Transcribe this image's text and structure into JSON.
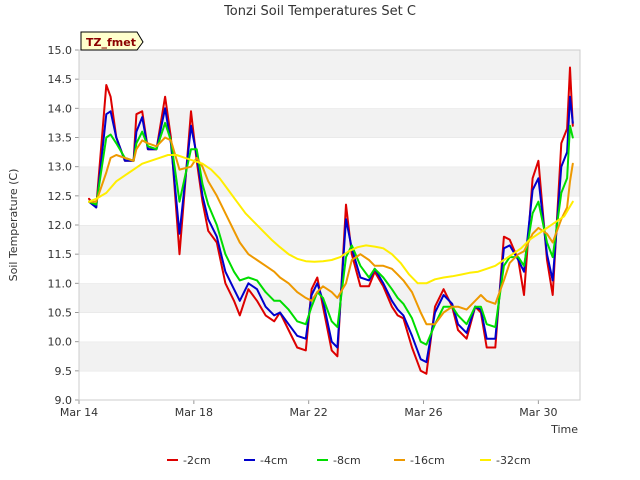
{
  "chart_data": {
    "type": "line",
    "title": "Tonzi Soil Temperatures Set C",
    "xlabel": "Time",
    "ylabel": "Soil Temperature (C)",
    "tag": "TZ_fmet",
    "xlim": [
      14,
      31.45
    ],
    "ylim": [
      9.0,
      15.0
    ],
    "x_ticks": [
      14,
      18,
      22,
      26,
      30
    ],
    "x_tick_labels": [
      "Mar 14",
      "Mar 18",
      "Mar 22",
      "Mar 26",
      "Mar 30"
    ],
    "y_ticks": [
      9.0,
      9.5,
      10.0,
      10.5,
      11.0,
      11.5,
      12.0,
      12.5,
      13.0,
      13.5,
      14.0,
      14.5,
      15.0
    ],
    "y_tick_labels": [
      "9.0",
      "9.5",
      "10.0",
      "10.5",
      "11.0",
      "11.5",
      "12.0",
      "12.5",
      "13.0",
      "13.5",
      "14.0",
      "14.5",
      "15.0"
    ],
    "grid": "horizontal bands",
    "legend_position": "bottom",
    "series": [
      {
        "name": "-2cm",
        "color": "#dd0000",
        "x": [
          14.35,
          14.6,
          14.95,
          15.1,
          15.3,
          15.6,
          15.9,
          16.0,
          16.2,
          16.4,
          16.7,
          17.0,
          17.2,
          17.5,
          17.9,
          18.1,
          18.3,
          18.5,
          18.8,
          19.1,
          19.4,
          19.6,
          19.9,
          20.2,
          20.5,
          20.8,
          21.0,
          21.3,
          21.6,
          21.9,
          22.1,
          22.3,
          22.5,
          22.8,
          23.0,
          23.3,
          23.5,
          23.8,
          24.1,
          24.3,
          24.6,
          24.9,
          25.1,
          25.3,
          25.6,
          25.9,
          26.1,
          26.4,
          26.7,
          27.0,
          27.2,
          27.5,
          27.8,
          28.0,
          28.2,
          28.5,
          28.8,
          29.0,
          29.3,
          29.5,
          29.8,
          30.0,
          30.3,
          30.5,
          30.8,
          31.0,
          31.1,
          31.2
        ],
        "y": [
          12.45,
          12.3,
          14.4,
          14.2,
          13.5,
          13.1,
          13.1,
          13.9,
          13.95,
          13.3,
          13.3,
          14.2,
          13.5,
          11.5,
          13.95,
          13.1,
          12.4,
          11.9,
          11.7,
          11.0,
          10.7,
          10.45,
          10.9,
          10.7,
          10.45,
          10.35,
          10.5,
          10.2,
          9.9,
          9.85,
          10.9,
          11.1,
          10.6,
          9.85,
          9.75,
          12.35,
          11.5,
          10.95,
          10.95,
          11.2,
          10.95,
          10.6,
          10.45,
          10.4,
          9.9,
          9.5,
          9.45,
          10.6,
          10.9,
          10.6,
          10.2,
          10.05,
          10.6,
          10.5,
          9.9,
          9.9,
          11.8,
          11.75,
          11.4,
          10.8,
          12.8,
          13.1,
          11.4,
          10.8,
          13.4,
          13.65,
          14.7,
          13.7
        ]
      },
      {
        "name": "-4cm",
        "color": "#0000cc",
        "x": [
          14.35,
          14.6,
          14.95,
          15.1,
          15.3,
          15.6,
          15.9,
          16.0,
          16.2,
          16.4,
          16.7,
          17.0,
          17.2,
          17.5,
          17.9,
          18.1,
          18.3,
          18.5,
          18.8,
          19.1,
          19.4,
          19.6,
          19.9,
          20.2,
          20.5,
          20.8,
          21.0,
          21.3,
          21.6,
          21.9,
          22.1,
          22.3,
          22.5,
          22.8,
          23.0,
          23.3,
          23.5,
          23.8,
          24.1,
          24.3,
          24.6,
          24.9,
          25.1,
          25.3,
          25.6,
          25.9,
          26.1,
          26.4,
          26.7,
          27.0,
          27.2,
          27.5,
          27.8,
          28.0,
          28.2,
          28.5,
          28.8,
          29.0,
          29.3,
          29.5,
          29.8,
          30.0,
          30.3,
          30.5,
          30.8,
          31.0,
          31.1,
          31.2
        ],
        "y": [
          12.4,
          12.3,
          13.9,
          13.95,
          13.5,
          13.1,
          13.1,
          13.6,
          13.85,
          13.3,
          13.3,
          14.0,
          13.4,
          11.85,
          13.7,
          13.2,
          12.5,
          12.1,
          11.8,
          11.2,
          10.9,
          10.7,
          11.0,
          10.9,
          10.6,
          10.45,
          10.5,
          10.3,
          10.1,
          10.05,
          10.8,
          11.0,
          10.7,
          10.0,
          9.9,
          12.1,
          11.6,
          11.1,
          11.05,
          11.25,
          11.0,
          10.7,
          10.55,
          10.45,
          10.1,
          9.7,
          9.65,
          10.5,
          10.8,
          10.65,
          10.3,
          10.15,
          10.6,
          10.55,
          10.05,
          10.05,
          11.6,
          11.65,
          11.4,
          11.2,
          12.6,
          12.8,
          11.5,
          11.05,
          13.0,
          13.25,
          14.2,
          13.75
        ]
      },
      {
        "name": "-8cm",
        "color": "#00dd00",
        "x": [
          14.35,
          14.6,
          14.95,
          15.1,
          15.3,
          15.6,
          15.9,
          16.0,
          16.2,
          16.4,
          16.7,
          17.0,
          17.2,
          17.5,
          17.9,
          18.1,
          18.3,
          18.5,
          18.8,
          19.1,
          19.4,
          19.6,
          19.9,
          20.2,
          20.5,
          20.8,
          21.0,
          21.3,
          21.6,
          21.9,
          22.1,
          22.3,
          22.5,
          22.8,
          23.0,
          23.3,
          23.5,
          23.8,
          24.1,
          24.3,
          24.6,
          24.9,
          25.1,
          25.3,
          25.6,
          25.9,
          26.1,
          26.4,
          26.7,
          27.0,
          27.2,
          27.5,
          27.8,
          28.0,
          28.2,
          28.5,
          28.8,
          29.0,
          29.3,
          29.5,
          29.8,
          30.0,
          30.3,
          30.5,
          30.8,
          31.0,
          31.1,
          31.2
        ],
        "y": [
          12.4,
          12.35,
          13.5,
          13.55,
          13.4,
          13.15,
          13.1,
          13.4,
          13.6,
          13.35,
          13.3,
          13.75,
          13.45,
          12.4,
          13.3,
          13.3,
          12.7,
          12.35,
          12.0,
          11.5,
          11.2,
          11.05,
          11.1,
          11.05,
          10.85,
          10.7,
          10.7,
          10.55,
          10.35,
          10.3,
          10.6,
          10.85,
          10.75,
          10.35,
          10.25,
          11.45,
          11.65,
          11.3,
          11.1,
          11.25,
          11.1,
          10.9,
          10.75,
          10.65,
          10.4,
          10.0,
          9.95,
          10.3,
          10.6,
          10.6,
          10.45,
          10.3,
          10.6,
          10.6,
          10.3,
          10.25,
          11.3,
          11.45,
          11.45,
          11.3,
          12.2,
          12.4,
          11.7,
          11.45,
          12.55,
          12.8,
          13.7,
          13.5
        ]
      },
      {
        "name": "-16cm",
        "color": "#ee9900",
        "x": [
          14.35,
          14.6,
          14.95,
          15.1,
          15.3,
          15.6,
          15.9,
          16.0,
          16.2,
          16.4,
          16.7,
          17.0,
          17.2,
          17.5,
          17.9,
          18.1,
          18.3,
          18.5,
          18.8,
          19.1,
          19.4,
          19.6,
          19.9,
          20.2,
          20.5,
          20.8,
          21.0,
          21.3,
          21.6,
          21.9,
          22.1,
          22.3,
          22.5,
          22.8,
          23.0,
          23.3,
          23.5,
          23.8,
          24.1,
          24.3,
          24.6,
          24.9,
          25.1,
          25.3,
          25.6,
          25.9,
          26.1,
          26.4,
          26.7,
          27.0,
          27.2,
          27.5,
          27.8,
          28.0,
          28.2,
          28.5,
          28.8,
          29.0,
          29.3,
          29.5,
          29.8,
          30.0,
          30.3,
          30.5,
          30.8,
          31.0,
          31.1,
          31.2
        ],
        "y": [
          12.4,
          12.4,
          12.9,
          13.15,
          13.2,
          13.15,
          13.1,
          13.3,
          13.45,
          13.4,
          13.35,
          13.5,
          13.45,
          12.95,
          13.0,
          13.15,
          13.0,
          12.75,
          12.5,
          12.2,
          11.9,
          11.7,
          11.5,
          11.4,
          11.3,
          11.2,
          11.1,
          11.0,
          10.85,
          10.75,
          10.7,
          10.85,
          10.95,
          10.85,
          10.75,
          11.0,
          11.4,
          11.5,
          11.4,
          11.3,
          11.3,
          11.25,
          11.15,
          11.05,
          10.85,
          10.5,
          10.3,
          10.3,
          10.5,
          10.6,
          10.6,
          10.55,
          10.7,
          10.8,
          10.7,
          10.65,
          11.05,
          11.35,
          11.5,
          11.55,
          11.85,
          11.95,
          11.85,
          11.7,
          12.1,
          12.3,
          12.75,
          13.05
        ]
      },
      {
        "name": "-32cm",
        "color": "#ffee00",
        "x": [
          14.35,
          14.6,
          14.95,
          15.3,
          15.6,
          15.9,
          16.2,
          16.5,
          16.8,
          17.1,
          17.4,
          17.7,
          18.0,
          18.3,
          18.6,
          18.9,
          19.2,
          19.5,
          19.8,
          20.1,
          20.4,
          20.7,
          21.0,
          21.3,
          21.6,
          21.9,
          22.2,
          22.5,
          22.8,
          23.1,
          23.4,
          23.7,
          24.0,
          24.3,
          24.6,
          24.9,
          25.2,
          25.5,
          25.8,
          26.1,
          26.4,
          26.7,
          27.0,
          27.3,
          27.6,
          27.9,
          28.2,
          28.5,
          28.8,
          29.1,
          29.4,
          29.7,
          30.0,
          30.3,
          30.6,
          30.9,
          31.2
        ],
        "y": [
          12.4,
          12.45,
          12.55,
          12.75,
          12.85,
          12.95,
          13.05,
          13.1,
          13.15,
          13.2,
          13.2,
          13.15,
          13.1,
          13.05,
          12.95,
          12.8,
          12.6,
          12.4,
          12.2,
          12.05,
          11.9,
          11.75,
          11.62,
          11.5,
          11.42,
          11.38,
          11.37,
          11.38,
          11.4,
          11.45,
          11.55,
          11.62,
          11.65,
          11.63,
          11.6,
          11.5,
          11.35,
          11.15,
          11.0,
          11.0,
          11.07,
          11.1,
          11.12,
          11.15,
          11.18,
          11.2,
          11.25,
          11.3,
          11.4,
          11.5,
          11.6,
          11.75,
          11.85,
          11.95,
          12.05,
          12.15,
          12.4
        ]
      }
    ]
  }
}
